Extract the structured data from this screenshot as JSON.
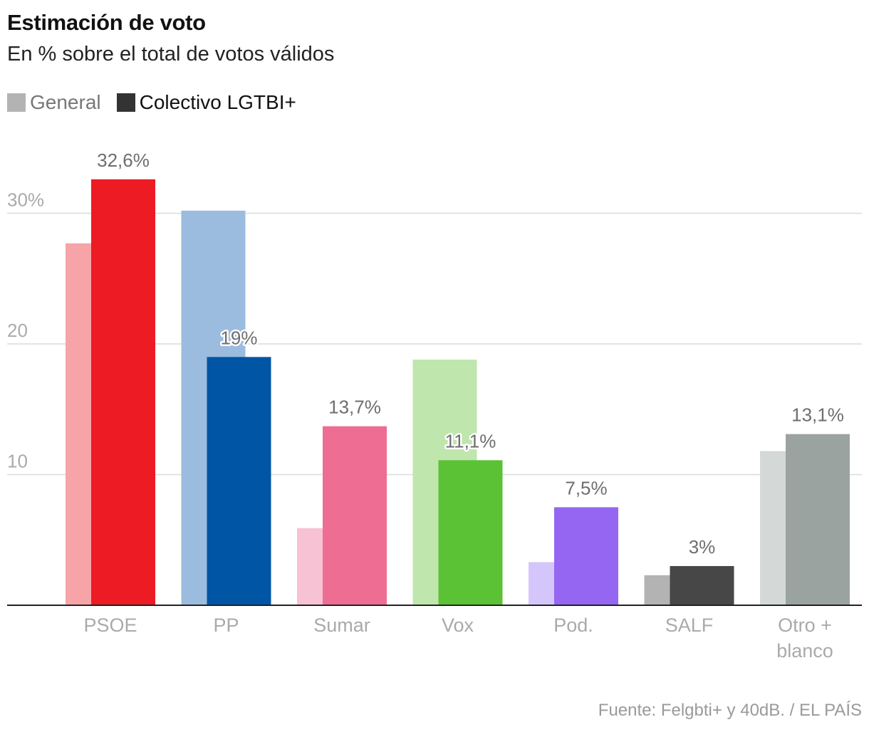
{
  "title": "Estimación de voto",
  "subtitle": "En % sobre el total de votos válidos",
  "source": "Fuente: Felgbti+ y 40dB. / EL PAÍS",
  "legend": {
    "general": "General",
    "lgtbi": "Colectivo LGTBI+",
    "general_color": "#b3b3b3",
    "lgtbi_color": "#333333"
  },
  "chart_data": {
    "type": "bar",
    "title": "Estimación de voto",
    "subtitle": "En % sobre el total de votos válidos",
    "ylim": [
      0,
      35
    ],
    "yticks": [
      {
        "value": 10,
        "label": "10"
      },
      {
        "value": 20,
        "label": "20"
      },
      {
        "value": 30,
        "label": "30%"
      }
    ],
    "grid": true,
    "legend_position": "top-left",
    "categories": [
      "PSOE",
      "PP",
      "Sumar",
      "Vox",
      "Pod.",
      "SALF",
      "Otro + blanco"
    ],
    "category_lines": [
      [
        "PSOE"
      ],
      [
        "PP"
      ],
      [
        "Sumar"
      ],
      [
        "Vox"
      ],
      [
        "Pod."
      ],
      [
        "SALF"
      ],
      [
        "Otro +",
        "blanco"
      ]
    ],
    "series": [
      {
        "name": "General",
        "values": [
          27.7,
          30.2,
          5.9,
          18.8,
          3.3,
          2.3,
          11.8
        ],
        "colors": [
          "#f6a4a8",
          "#9bbcde",
          "#f7c2d3",
          "#bfe6ad",
          "#d4c6fa",
          "#b3b3b3",
          "#d4d9d8"
        ]
      },
      {
        "name": "Colectivo LGTBI+",
        "values": [
          32.6,
          19.0,
          13.7,
          11.1,
          7.5,
          3.0,
          13.1
        ],
        "labels": [
          "32,6%",
          "19%",
          "13,7%",
          "11,1%",
          "7,5%",
          "3%",
          "13,1%"
        ],
        "colors": [
          "#ed1c24",
          "#0055a5",
          "#ed6e92",
          "#5bc236",
          "#9466f2",
          "#474747",
          "#9ba3a0"
        ]
      }
    ]
  }
}
